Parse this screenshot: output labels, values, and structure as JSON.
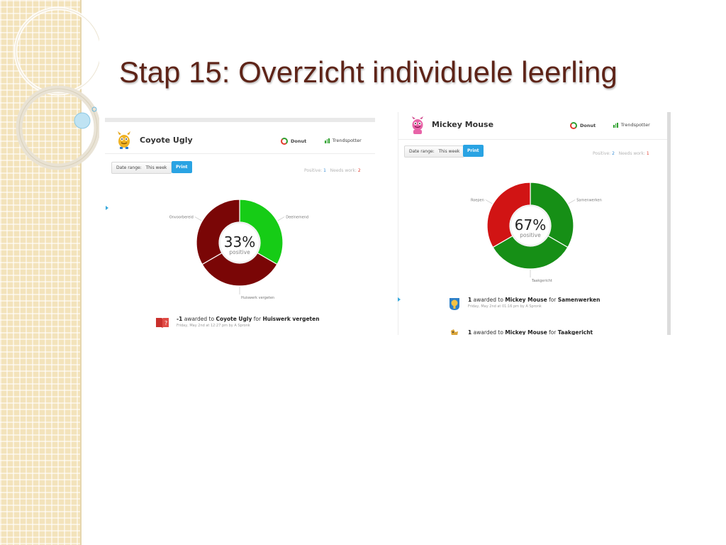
{
  "slide": {
    "title": "Stap 15: Overzicht individuele leerling",
    "colors": {
      "title": "#5e2418",
      "sidebar": "#f3e3bb"
    }
  },
  "students": [
    {
      "name": "Coyote Ugly",
      "avatar_icon": "yellow-monster-icon",
      "tabs": [
        {
          "label": "Donut",
          "active": true
        },
        {
          "label": "Trendspotter",
          "active": false
        }
      ],
      "date_range_label": "Date range:",
      "date_range_value": "This week",
      "print_label": "Print",
      "positive_label": "Positive:",
      "positive_count": "1",
      "needs_work_label": "Needs work:",
      "needs_work_count": "2",
      "percent": "33%",
      "percent_caption": "positive",
      "segments": [
        {
          "label": "Deelnemend",
          "value": 1,
          "color": "#16cc16"
        },
        {
          "label": "Huiswerk vergeten",
          "value": 1,
          "color": "#7a0606"
        },
        {
          "label": "Onvoorbereid",
          "value": 1,
          "color": "#7a0606"
        }
      ],
      "awards": [
        {
          "icon": "homework-book-icon",
          "amount": "-1",
          "text_awarded": "awarded to",
          "student": "Coyote Ugly",
          "text_for": "for",
          "behavior": "Huiswerk vergeten",
          "meta": "Friday, May 2nd at 12:27 pm by A Spronk"
        }
      ]
    },
    {
      "name": "Mickey Mouse",
      "avatar_icon": "pink-monster-icon",
      "tabs": [
        {
          "label": "Donut",
          "active": true
        },
        {
          "label": "Trendspotter",
          "active": false
        }
      ],
      "date_range_label": "Date range:",
      "date_range_value": "This week",
      "print_label": "Print",
      "positive_label": "Positive:",
      "positive_count": "2",
      "needs_work_label": "Needs work:",
      "needs_work_count": "1",
      "percent": "67%",
      "percent_caption": "positive",
      "segments": [
        {
          "label": "Samenwerken",
          "value": 1,
          "color": "#168f16"
        },
        {
          "label": "Taakgericht",
          "value": 1,
          "color": "#168f16"
        },
        {
          "label": "Roepen",
          "value": 1,
          "color": "#d11414"
        }
      ],
      "awards": [
        {
          "icon": "teamwork-badge-icon",
          "amount": "1",
          "text_awarded": "awarded to",
          "student": "Mickey Mouse",
          "text_for": "for",
          "behavior": "Samenwerken",
          "meta": "Friday, May 2nd at 01:16 pm by A Spronk"
        },
        {
          "icon": "on-task-badge-icon",
          "amount": "1",
          "text_awarded": "awarded to",
          "student": "Mickey Mouse",
          "text_for": "for",
          "behavior": "Taakgericht",
          "meta": ""
        }
      ]
    }
  ]
}
